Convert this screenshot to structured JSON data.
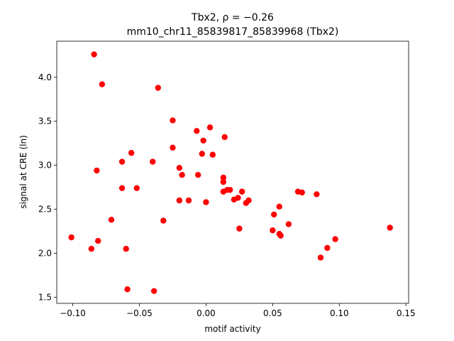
{
  "chart_data": {
    "type": "scatter",
    "title_line1": "Tbx2, ρ = −0.26",
    "title_line2": "mm10_chr11_85839817_85839968 (Tbx2)",
    "xlabel": "motif activity",
    "ylabel": "signal at CRE (ln)",
    "xlim": [
      -0.112,
      0.152
    ],
    "ylim": [
      1.43,
      4.41
    ],
    "x_ticks": [
      {
        "value": -0.1,
        "label": "−0.10"
      },
      {
        "value": -0.05,
        "label": "−0.05"
      },
      {
        "value": 0.0,
        "label": "0.00"
      },
      {
        "value": 0.05,
        "label": "0.05"
      },
      {
        "value": 0.1,
        "label": "0.10"
      },
      {
        "value": 0.15,
        "label": "0.15"
      }
    ],
    "y_ticks": [
      {
        "value": 1.5,
        "label": "1.5"
      },
      {
        "value": 2.0,
        "label": "2.0"
      },
      {
        "value": 2.5,
        "label": "2.5"
      },
      {
        "value": 3.0,
        "label": "3.0"
      },
      {
        "value": 3.5,
        "label": "3.5"
      },
      {
        "value": 4.0,
        "label": "4.0"
      }
    ],
    "grid": false,
    "marker_color": "#ff0000",
    "points": [
      {
        "x": -0.101,
        "y": 2.18
      },
      {
        "x": -0.086,
        "y": 2.05
      },
      {
        "x": -0.084,
        "y": 4.26
      },
      {
        "x": -0.082,
        "y": 2.94
      },
      {
        "x": -0.081,
        "y": 2.14
      },
      {
        "x": -0.078,
        "y": 3.92
      },
      {
        "x": -0.071,
        "y": 2.38
      },
      {
        "x": -0.063,
        "y": 3.04
      },
      {
        "x": -0.063,
        "y": 2.74
      },
      {
        "x": -0.06,
        "y": 2.05
      },
      {
        "x": -0.059,
        "y": 1.59
      },
      {
        "x": -0.056,
        "y": 3.14
      },
      {
        "x": -0.052,
        "y": 2.74
      },
      {
        "x": -0.04,
        "y": 3.04
      },
      {
        "x": -0.039,
        "y": 1.57
      },
      {
        "x": -0.036,
        "y": 3.88
      },
      {
        "x": -0.032,
        "y": 2.37
      },
      {
        "x": -0.025,
        "y": 3.51
      },
      {
        "x": -0.025,
        "y": 3.2
      },
      {
        "x": -0.02,
        "y": 2.97
      },
      {
        "x": -0.02,
        "y": 2.6
      },
      {
        "x": -0.018,
        "y": 2.89
      },
      {
        "x": -0.013,
        "y": 2.6
      },
      {
        "x": -0.007,
        "y": 3.39
      },
      {
        "x": -0.006,
        "y": 2.89
      },
      {
        "x": -0.003,
        "y": 3.13
      },
      {
        "x": -0.002,
        "y": 3.28
      },
      {
        "x": 0.0,
        "y": 2.58
      },
      {
        "x": 0.003,
        "y": 3.43
      },
      {
        "x": 0.005,
        "y": 3.12
      },
      {
        "x": 0.013,
        "y": 2.86
      },
      {
        "x": 0.013,
        "y": 2.81
      },
      {
        "x": 0.013,
        "y": 2.7
      },
      {
        "x": 0.014,
        "y": 3.32
      },
      {
        "x": 0.016,
        "y": 2.72
      },
      {
        "x": 0.018,
        "y": 2.72
      },
      {
        "x": 0.021,
        "y": 2.61
      },
      {
        "x": 0.024,
        "y": 2.63
      },
      {
        "x": 0.025,
        "y": 2.28
      },
      {
        "x": 0.027,
        "y": 2.7
      },
      {
        "x": 0.03,
        "y": 2.57
      },
      {
        "x": 0.032,
        "y": 2.6
      },
      {
        "x": 0.05,
        "y": 2.26
      },
      {
        "x": 0.051,
        "y": 2.44
      },
      {
        "x": 0.055,
        "y": 2.53
      },
      {
        "x": 0.055,
        "y": 2.22
      },
      {
        "x": 0.056,
        "y": 2.2
      },
      {
        "x": 0.062,
        "y": 2.33
      },
      {
        "x": 0.069,
        "y": 2.7
      },
      {
        "x": 0.072,
        "y": 2.69
      },
      {
        "x": 0.083,
        "y": 2.67
      },
      {
        "x": 0.086,
        "y": 1.95
      },
      {
        "x": 0.091,
        "y": 2.06
      },
      {
        "x": 0.097,
        "y": 2.16
      },
      {
        "x": 0.138,
        "y": 2.29
      }
    ]
  }
}
